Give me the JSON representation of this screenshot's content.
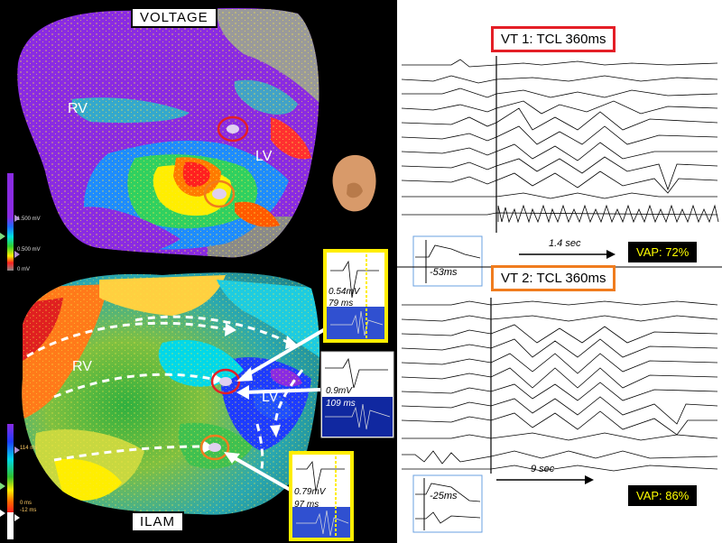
{
  "left": {
    "voltage_title": "VOLTAGE",
    "ilam_title": "ILAM",
    "top_map": {
      "rv": "RV",
      "lv": "LV"
    },
    "bottom_map": {
      "rv": "RV",
      "lv": "LV"
    },
    "voltage_scale": {
      "high": "1.500 mV",
      "low": "0.500 mV",
      "zero": "0 mV"
    },
    "ilam_scale": {
      "high": "114 ms",
      "zero": "0 ms",
      "neg": "-12 ms"
    },
    "egm_insets": [
      {
        "amp": "0.54mV",
        "time": "79 ms"
      },
      {
        "amp": "0.9mV",
        "time": "109 ms"
      },
      {
        "amp": "0.79mV",
        "time": "97 ms"
      }
    ]
  },
  "right": {
    "vt1": {
      "title": "VT 1: TCL 360ms",
      "inset_label": "-53ms",
      "duration": "1.4 sec",
      "vap": "VAP: 72%"
    },
    "vt2": {
      "title": "VT 2: TCL 360ms",
      "inset_label": "-25ms",
      "duration": "9 sec",
      "vap": "VAP: 86%"
    }
  },
  "colors": {
    "vt1_border": "#e41e26",
    "vt2_border": "#f07c1e",
    "inset_border": "#ffee00",
    "voltage_purple": "#8a2be2",
    "vap_text": "#ffff00"
  }
}
